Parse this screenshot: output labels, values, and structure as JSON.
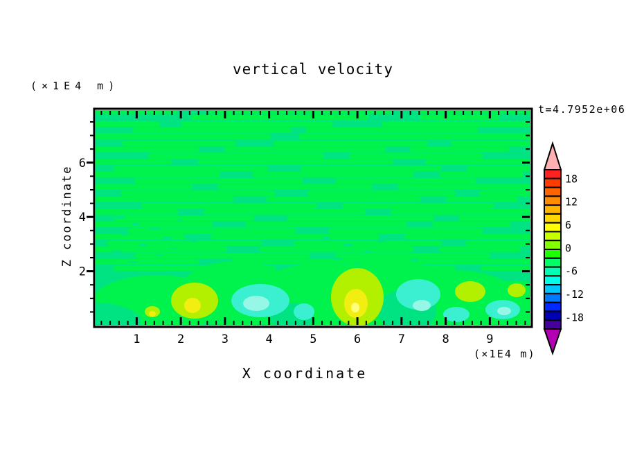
{
  "title": "vertical velocity",
  "time_label": "t=4.7952e+06",
  "axes": {
    "x": {
      "title": "X coordinate",
      "unit": "(×1E4 m)",
      "min": 0,
      "max": 10,
      "major_tick_labels": [
        "1",
        "2",
        "3",
        "4",
        "5",
        "6",
        "7",
        "8",
        "9"
      ],
      "minor_step": 0.2
    },
    "y": {
      "title": "Z coordinate",
      "unit": "(×1E4 m)",
      "min": 0,
      "max": 8,
      "major_tick_labels": [
        "2",
        "4",
        "6"
      ],
      "minor_step": 0.5
    }
  },
  "colorbar": {
    "labels": [
      "18",
      "12",
      "6",
      "0",
      "-6",
      "-12",
      "-18"
    ],
    "contour_interval": 3,
    "segment_colors": [
      "#ff2222",
      "#ff3c00",
      "#ff6400",
      "#ff8c00",
      "#ffb400",
      "#ffd800",
      "#ffff00",
      "#c8ff00",
      "#82ff00",
      "#1eff00",
      "#00ff64",
      "#00ffb4",
      "#00ffe6",
      "#00c8ff",
      "#0078ff",
      "#0028ff",
      "#0000b4",
      "#46009b"
    ],
    "over_arrow_color": "#ffb0b0",
    "under_arrow_color": "#b400b4"
  },
  "chart_data": {
    "type": "heatmap",
    "title": "vertical velocity",
    "time_annotation": "t=4.7952e+06",
    "xlabel": "X coordinate (×1E4 m)",
    "ylabel": "Z coordinate (×1E4 m)",
    "xlim": [
      0,
      10
    ],
    "ylim": [
      0,
      8
    ],
    "x_major_ticks": [
      1,
      2,
      3,
      4,
      5,
      6,
      7,
      8,
      9
    ],
    "y_major_ticks": [
      2,
      4,
      6
    ],
    "colorbar_tick_values": [
      18,
      12,
      6,
      0,
      -6,
      -12,
      -18
    ],
    "contour_interval": 3,
    "value_range_shown": [
      -21,
      21
    ],
    "legend_position": "right",
    "grid": false,
    "description": "Filled contour field of vertical velocity. Most of the domain is near zero (alternating green/teal horizontal streak contours between the 0 and -3 levels). Near the lower boundary there are stronger updraft cells reaching the +6 to +9 levels (yellow-green and yellow blobs) centered near x=2.2 and x=6.0 with weaker cells near x=1.3, x=8.5 and x=9.5, and downdraft patches reaching about -6 (cyan) near x=1.5, x=3.7, x=4.8, x=7.3 and x=9.2.",
    "field": {
      "colors": {
        "teal": "#00e383",
        "green": "#00f24d",
        "chartreuse": "#b2f000",
        "yellow": "#f2ee12",
        "bright_yellow": "#ffff7d",
        "cyan": "#3af0d0",
        "light_cyan": "#96f7e7"
      },
      "streak_rows": [
        [
          4,
          7,
          [
            [
              0,
              120
            ],
            [
              165,
              430
            ],
            [
              468,
              632
            ]
          ]
        ],
        [
          13,
          8,
          [
            [
              140,
              395
            ],
            [
              470,
              585
            ]
          ]
        ],
        [
          22,
          8,
          [
            [
              0,
              95
            ],
            [
              125,
              345
            ],
            [
              415,
              632
            ]
          ]
        ],
        [
          31,
          8,
          [
            [
              55,
              285
            ],
            [
              305,
              555
            ]
          ]
        ],
        [
          40,
          9,
          [
            [
              0,
              255
            ],
            [
              295,
              632
            ]
          ]
        ],
        [
          50,
          8,
          [
            [
              40,
              205
            ],
            [
              258,
              482
            ],
            [
              515,
              632
            ]
          ]
        ],
        [
          59,
          8,
          [
            [
              0,
              152
            ],
            [
              188,
              422
            ],
            [
              455,
              600
            ]
          ]
        ],
        [
          68,
          9,
          [
            [
              78,
              332
            ],
            [
              368,
              562
            ]
          ]
        ],
        [
          77,
          8,
          [
            [
              0,
              112
            ],
            [
              150,
              432
            ],
            [
              478,
              632
            ]
          ]
        ],
        [
          86,
          8,
          [
            [
              28,
              252
            ],
            [
              298,
              502
            ],
            [
              538,
              632
            ]
          ]
        ],
        [
          95,
          9,
          [
            [
              0,
              182
            ],
            [
              228,
              462
            ],
            [
              498,
              620
            ]
          ]
        ],
        [
          104,
          8,
          [
            [
              58,
              302
            ],
            [
              348,
              552
            ]
          ]
        ],
        [
          113,
          8,
          [
            [
              0,
              142
            ],
            [
              178,
              402
            ],
            [
              438,
              632
            ]
          ]
        ],
        [
          122,
          9,
          [
            [
              38,
              262
            ],
            [
              308,
              522
            ],
            [
              556,
              632
            ]
          ]
        ],
        [
          131,
          8,
          [
            [
              0,
              202
            ],
            [
              248,
              472
            ],
            [
              508,
              612
            ]
          ]
        ],
        [
          140,
          8,
          [
            [
              68,
              322
            ],
            [
              358,
              578
            ]
          ]
        ],
        [
          149,
          9,
          [
            [
              0,
              122
            ],
            [
              158,
              392
            ],
            [
              428,
              632
            ]
          ]
        ],
        [
          158,
          8,
          [
            [
              28,
              232
            ],
            [
              278,
              492
            ],
            [
              526,
              632
            ]
          ]
        ],
        [
          167,
          8,
          [
            [
              0,
              172
            ],
            [
              218,
              452
            ],
            [
              488,
              602
            ]
          ]
        ],
        [
          176,
          9,
          [
            [
              48,
              292
            ],
            [
              338,
              562
            ]
          ]
        ],
        [
          185,
          8,
          [
            [
              0,
              132
            ],
            [
              168,
              412
            ],
            [
              448,
              632
            ]
          ]
        ],
        [
          194,
          8,
          [
            [
              18,
              242
            ],
            [
              288,
              502
            ],
            [
              536,
              632
            ]
          ]
        ],
        [
          203,
          9,
          [
            [
              0,
              192
            ],
            [
              238,
              462
            ],
            [
              498,
              616
            ]
          ]
        ],
        [
          212,
          8,
          [
            [
              58,
              312
            ],
            [
              348,
              572
            ]
          ]
        ],
        [
          221,
          8,
          [
            [
              0,
              152
            ],
            [
              198,
              432
            ],
            [
              466,
              632
            ]
          ]
        ],
        [
          230,
          8,
          [
            [
              28,
              262
            ],
            [
              308,
              522
            ],
            [
              558,
              632
            ]
          ]
        ]
      ],
      "speckles": [
        [
          30,
          155,
          14
        ],
        [
          55,
          165,
          10
        ],
        [
          80,
          172,
          16
        ],
        [
          40,
          180,
          8
        ],
        [
          100,
          185,
          12
        ],
        [
          65,
          195,
          10
        ],
        [
          25,
          205,
          14
        ],
        [
          90,
          210,
          9
        ],
        [
          120,
          160,
          8
        ],
        [
          110,
          200,
          10
        ],
        [
          140,
          190,
          8
        ],
        [
          50,
          220,
          12
        ],
        [
          330,
          185,
          10
        ],
        [
          360,
          195,
          14
        ],
        [
          390,
          205,
          9
        ],
        [
          345,
          215,
          12
        ],
        [
          375,
          222,
          8
        ],
        [
          410,
          190,
          10
        ]
      ],
      "green_masses": [
        [
          90,
          282,
          95,
          42
        ],
        [
          205,
          268,
          85,
          48
        ],
        [
          330,
          278,
          110,
          55
        ],
        [
          420,
          258,
          78,
          45
        ],
        [
          520,
          278,
          95,
          45
        ],
        [
          605,
          288,
          70,
          40
        ]
      ],
      "teal_channels": [
        [
          0,
          308,
          68,
          28
        ],
        [
          285,
          302,
          30,
          22
        ],
        [
          452,
          292,
          42,
          32
        ]
      ],
      "chartreuse_blobs": [
        [
          145,
          277,
          34,
          26
        ],
        [
          380,
          272,
          38,
          42
        ],
        [
          543,
          264,
          22,
          15
        ],
        [
          610,
          262,
          13,
          10
        ],
        [
          84,
          293,
          11,
          8
        ]
      ],
      "yellow_blobs": [
        [
          142,
          284,
          12,
          11
        ],
        [
          378,
          281,
          17,
          21
        ],
        [
          84,
          296,
          5,
          4
        ]
      ],
      "bright_yellow_blobs": [
        [
          377,
          287,
          6,
          7
        ]
      ],
      "cyan_blobs": [
        [
          240,
          277,
          42,
          24
        ],
        [
          303,
          293,
          15,
          12
        ],
        [
          468,
          268,
          32,
          22
        ],
        [
          523,
          297,
          19,
          11
        ],
        [
          590,
          290,
          25,
          14
        ]
      ],
      "light_cyan_blobs": [
        [
          234,
          281,
          19,
          11
        ],
        [
          473,
          284,
          13,
          8
        ],
        [
          592,
          292,
          10,
          6
        ]
      ]
    }
  }
}
